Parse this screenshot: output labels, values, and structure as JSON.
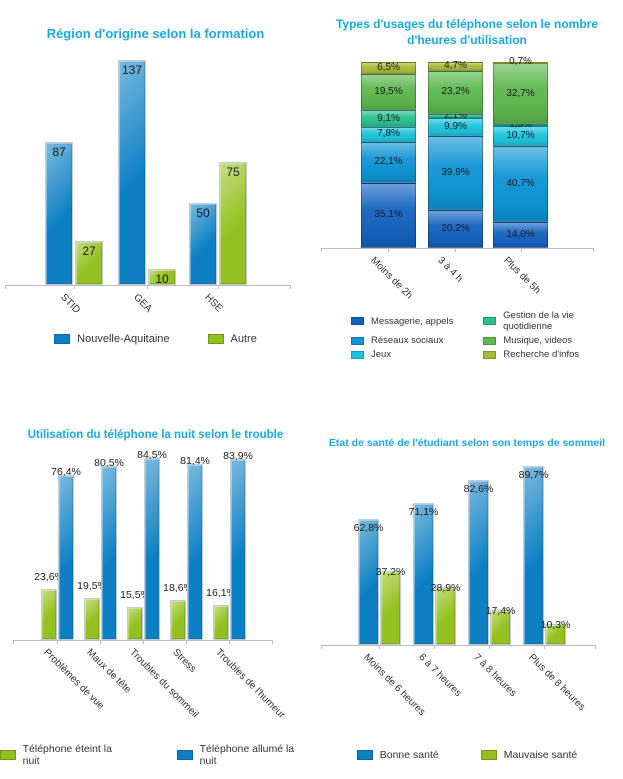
{
  "colors": {
    "title": "#1ca8da",
    "axis": "#b6bcc1",
    "value_label": "#1b1b1b",
    "category_label": "#333333",
    "background": "#ffffff",
    "blue_bar": "#0d80c4",
    "green_bar": "#94c11f"
  },
  "chart_data": [
    {
      "id": "region-origine-formation",
      "type": "bar",
      "title": "Région d'origine selon la formation",
      "categories": [
        "STID",
        "GEA",
        "HSE"
      ],
      "series": [
        {
          "name": "Nouvelle-Aquitaine",
          "color": "#0d80c4",
          "values": [
            87,
            137,
            50
          ],
          "labels": [
            "87",
            "137",
            "50"
          ]
        },
        {
          "name": "Autre",
          "color": "#94c11f",
          "values": [
            27,
            10,
            75
          ],
          "labels": [
            "27",
            "10",
            "75"
          ]
        }
      ],
      "ylim": [
        0,
        137
      ],
      "grid": false,
      "legend_position": "bottom"
    },
    {
      "id": "types-usages-telephone",
      "type": "stacked-bar",
      "title": "Types d'usages du téléphone selon le nombre d'heures d'utilisation",
      "categories": [
        "Moins de 2h",
        "3 à 4 h",
        "Plus de 5h"
      ],
      "stack_order": "bottom-to-top",
      "unit": "%",
      "series": [
        {
          "name": "Messagerie, appels",
          "color": "#1563c0",
          "values": [
            35.1,
            20.2,
            14.0
          ],
          "labels": [
            "35,1%",
            "20,2%",
            "14,0%"
          ]
        },
        {
          "name": "Réseaux sociaux",
          "color": "#0f95d4",
          "values": [
            22.1,
            39.9,
            40.7
          ],
          "labels": [
            "22,1%",
            "39,9%",
            "40,7%"
          ]
        },
        {
          "name": "Jeux",
          "color": "#1cc4dc",
          "values": [
            7.8,
            9.9,
            10.7
          ],
          "labels": [
            "7,8%",
            "9,9%",
            "10,7%"
          ]
        },
        {
          "name": "Gestion de la vie quotidienne",
          "color": "#29c28e",
          "values": [
            9.1,
            2.1,
            1.3
          ],
          "labels": [
            "9,1%",
            "2,1%",
            "1,3%"
          ]
        },
        {
          "name": "Musique, videos",
          "color": "#5eb84f",
          "values": [
            19.5,
            23.2,
            32.7
          ],
          "labels": [
            "19,5%",
            "23,2%",
            "32,7%"
          ]
        },
        {
          "name": "Recherche d'infos",
          "color": "#a9ba39",
          "values": [
            6.5,
            4.7,
            0.7
          ],
          "labels": [
            "6,5%",
            "4,7%",
            "0,7%"
          ]
        }
      ],
      "ylim": [
        0,
        100
      ],
      "grid": false,
      "legend_position": "bottom-two-columns"
    },
    {
      "id": "utilisation-telephone-nuit",
      "type": "bar",
      "title": "Utilisation du téléphone la nuit selon le trouble",
      "categories": [
        "Problèmes de vue",
        "Maux de tête",
        "Troubles du sommeil",
        "Stress",
        "Troubles de l'humeur"
      ],
      "unit": "%",
      "series": [
        {
          "name": "Téléphone éteint la nuit",
          "color": "#94c11f",
          "values": [
            23.6,
            19.5,
            15.5,
            18.6,
            16.1
          ],
          "labels": [
            "23,6%",
            "19,5%",
            "15,5%",
            "18,6%",
            "16,1%"
          ]
        },
        {
          "name": "Téléphone allumé la nuit",
          "color": "#0d80c4",
          "values": [
            76.4,
            80.5,
            84.5,
            81.4,
            83.9
          ],
          "labels": [
            "76,4%",
            "80,5%",
            "84,5%",
            "81,4%",
            "83,9%"
          ]
        }
      ],
      "ylim": [
        0,
        100
      ],
      "grid": false,
      "legend_position": "bottom"
    },
    {
      "id": "etat-sante-sommeil",
      "type": "bar",
      "title": "Etat de santé de l'étudiant selon son temps de sommeil",
      "categories": [
        "Moins de 6 heures",
        "6 à 7 heures",
        "7 à 8 heures",
        "Plus de 8 heures"
      ],
      "unit": "%",
      "series": [
        {
          "name": "Bonne santé",
          "color": "#0d80c4",
          "values": [
            62.8,
            71.1,
            82.6,
            89.7
          ],
          "labels": [
            "62,8%",
            "71,1%",
            "82,6%",
            "89,7%"
          ]
        },
        {
          "name": "Mauvaise santé",
          "color": "#94c11f",
          "values": [
            37.2,
            28.9,
            17.4,
            10.3
          ],
          "labels": [
            "37,2%",
            "28,9%",
            "17,4%",
            "10,3%"
          ]
        }
      ],
      "ylim": [
        0,
        100
      ],
      "grid": false,
      "legend_position": "bottom"
    }
  ]
}
